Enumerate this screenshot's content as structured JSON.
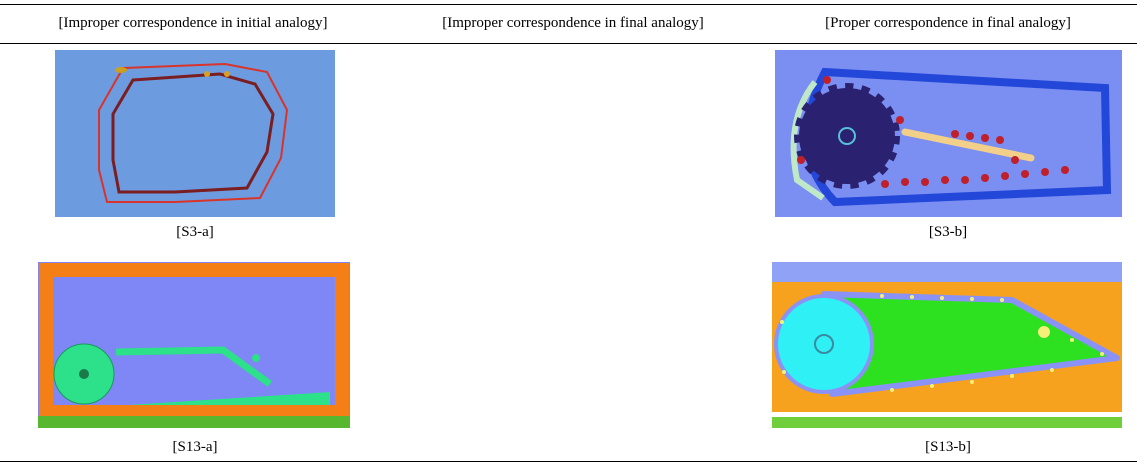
{
  "table": {
    "headers": [
      "[Improper correspondence in initial analogy]",
      "[Improper correspondence in final analogy]",
      "[Proper correspondence in final analogy]"
    ],
    "captions": [
      [
        "[S3-a]",
        "[S3-b]"
      ],
      [
        "[S13-a]",
        "[S13-b]"
      ]
    ]
  }
}
